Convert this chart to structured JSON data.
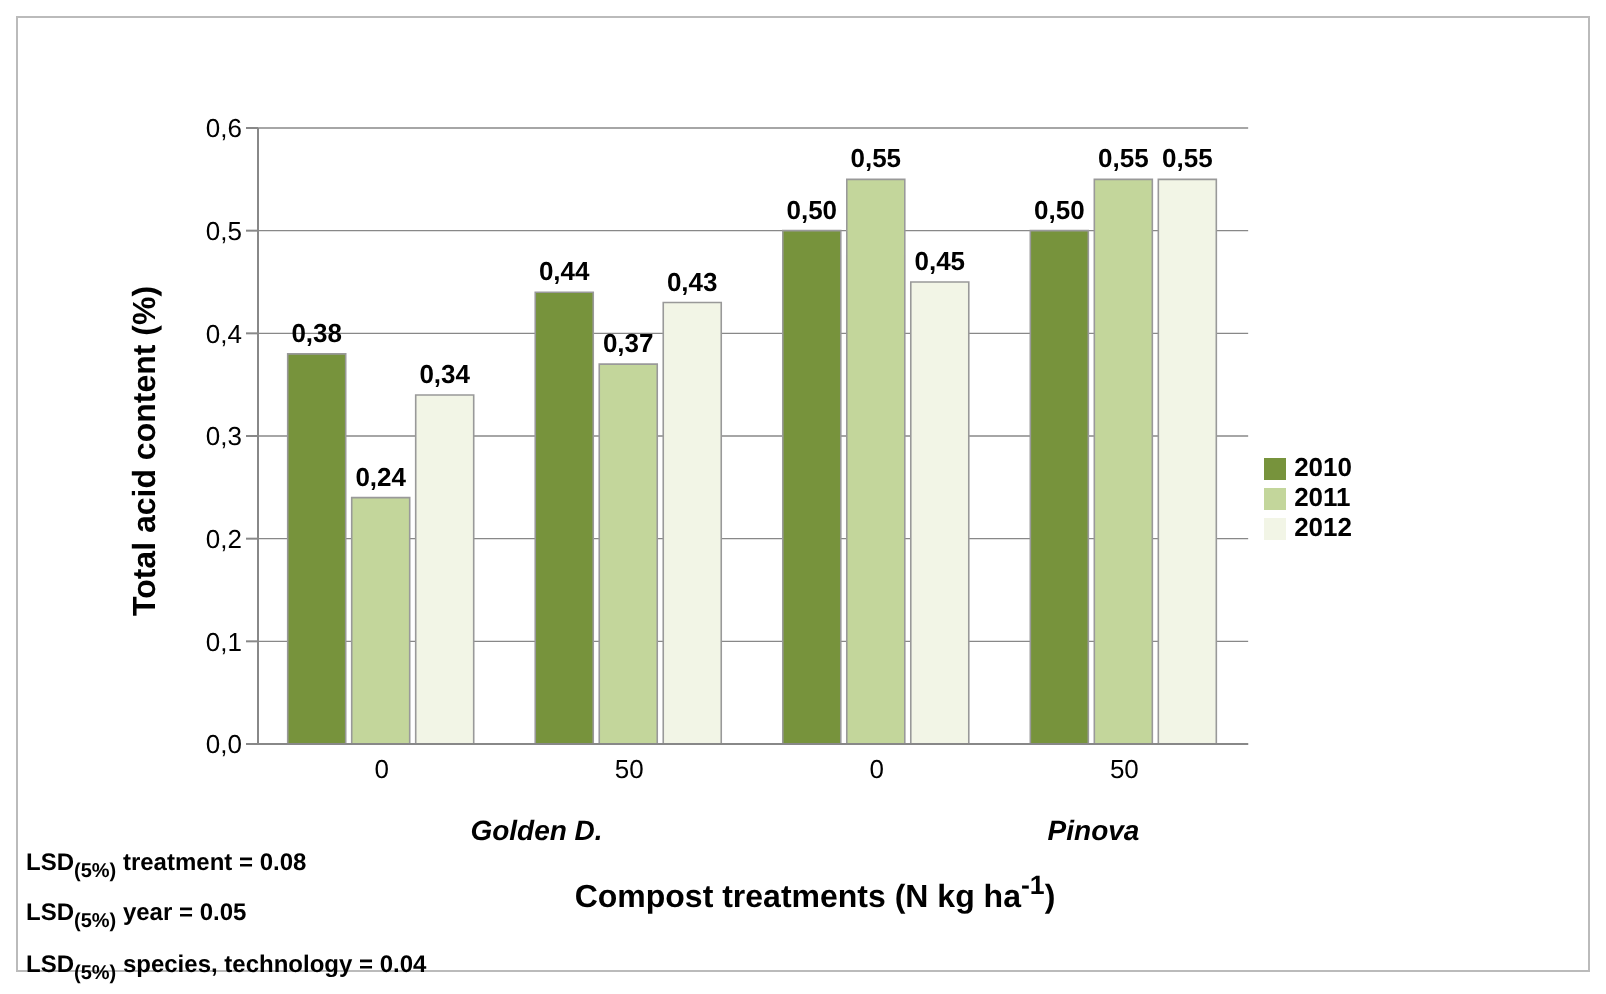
{
  "chart_data": {
    "type": "bar",
    "ylabel": "Total acid content (%)",
    "xlabel": "Compost treatments (N kg ha$^{-1}$)",
    "categories": [
      "0",
      "50",
      "0",
      "50"
    ],
    "series": [
      {
        "name": "2010",
        "color": "#77933c",
        "values": [
          0.38,
          0.44,
          0.5,
          0.5
        ],
        "value_labels": [
          "0,38",
          "0,44",
          "0,50",
          "0,50"
        ]
      },
      {
        "name": "2011",
        "color": "#c3d69b",
        "values": [
          0.24,
          0.37,
          0.55,
          0.55
        ],
        "value_labels": [
          "0,24",
          "0,37",
          "0,55",
          "0,55"
        ]
      },
      {
        "name": "2012",
        "color": "#f2f5e6",
        "values": [
          0.34,
          0.43,
          0.45,
          0.55
        ],
        "value_labels": [
          "0,34",
          "0,43",
          "0,45",
          "0,55"
        ]
      }
    ],
    "ylim": [
      0,
      0.6
    ],
    "yticks": [
      {
        "value": 0,
        "label": "0,0"
      },
      {
        "value": 0.1,
        "label": "0,1"
      },
      {
        "value": 0.2,
        "label": "0,2"
      },
      {
        "value": 0.3,
        "label": "0,3"
      },
      {
        "value": 0.4,
        "label": "0,4"
      },
      {
        "value": 0.5,
        "label": "0,5"
      },
      {
        "value": 0.6,
        "label": "0,6"
      }
    ],
    "grid": "y",
    "legend": "right",
    "annotations": [
      "Golden D.",
      "Pinova",
      "LSD$_{(5%)}$ treatment = 0.08",
      "LSD$_{(5%)}$ year =  0.05",
      "LSD$_{(5%)}$ species, technology = 0.04"
    ]
  }
}
